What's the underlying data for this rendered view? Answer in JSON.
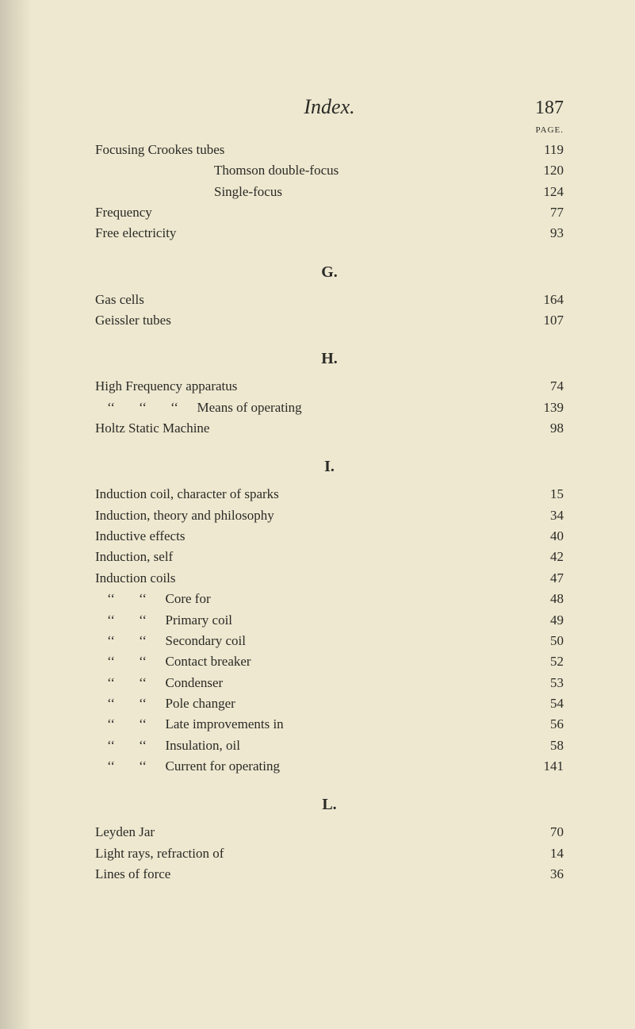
{
  "header": {
    "title": "Index.",
    "pageNumber": "187",
    "pageLabel": "PAGE."
  },
  "sections": [
    {
      "heading": null,
      "entries": [
        {
          "label": "Focusing Crookes tubes",
          "page": "119",
          "indent": 0,
          "ditto": 0
        },
        {
          "label": "Thomson double-focus",
          "page": "120",
          "indent": 1,
          "ditto": 0
        },
        {
          "label": "Single-focus",
          "page": "124",
          "indent": 1,
          "ditto": 0
        },
        {
          "label": "Frequency",
          "page": "77",
          "indent": 0,
          "ditto": 0
        },
        {
          "label": "Free electricity",
          "page": "93",
          "indent": 0,
          "ditto": 0
        }
      ]
    },
    {
      "heading": "G.",
      "entries": [
        {
          "label": "Gas cells",
          "page": "164",
          "indent": 0,
          "ditto": 0
        },
        {
          "label": "Geissler tubes",
          "page": "107",
          "indent": 0,
          "ditto": 0
        }
      ]
    },
    {
      "heading": "H.",
      "entries": [
        {
          "label": "High Frequency apparatus",
          "page": "74",
          "indent": 0,
          "ditto": 0
        },
        {
          "label": "Means of operating",
          "page": "139",
          "indent": 0,
          "ditto": 3
        },
        {
          "label": "Holtz Static Machine",
          "page": "98",
          "indent": 0,
          "ditto": 0
        }
      ]
    },
    {
      "heading": "I.",
      "entries": [
        {
          "label": "Induction coil, character of sparks",
          "page": "15",
          "indent": 0,
          "ditto": 0
        },
        {
          "label": "Induction, theory and philosophy",
          "page": "34",
          "indent": 0,
          "ditto": 0
        },
        {
          "label": "Inductive effects",
          "page": "40",
          "indent": 0,
          "ditto": 0
        },
        {
          "label": "Induction, self",
          "page": "42",
          "indent": 0,
          "ditto": 0
        },
        {
          "label": "Induction coils",
          "page": "47",
          "indent": 0,
          "ditto": 0
        },
        {
          "label": "Core for",
          "page": "48",
          "indent": 0,
          "ditto": 2
        },
        {
          "label": "Primary coil",
          "page": "49",
          "indent": 0,
          "ditto": 2
        },
        {
          "label": "Secondary coil",
          "page": "50",
          "indent": 0,
          "ditto": 2
        },
        {
          "label": "Contact breaker",
          "page": "52",
          "indent": 0,
          "ditto": 2
        },
        {
          "label": "Condenser",
          "page": "53",
          "indent": 0,
          "ditto": 2
        },
        {
          "label": "Pole changer",
          "page": "54",
          "indent": 0,
          "ditto": 2
        },
        {
          "label": "Late improvements in",
          "page": "56",
          "indent": 0,
          "ditto": 2
        },
        {
          "label": "Insulation, oil",
          "page": "58",
          "indent": 0,
          "ditto": 2
        },
        {
          "label": "Current for operating",
          "page": "141",
          "indent": 0,
          "ditto": 2
        }
      ]
    },
    {
      "heading": "L.",
      "entries": [
        {
          "label": "Leyden Jar",
          "page": "70",
          "indent": 0,
          "ditto": 0
        },
        {
          "label": "Light rays, refraction of",
          "page": "14",
          "indent": 0,
          "ditto": 0
        },
        {
          "label": "Lines of force",
          "page": "36",
          "indent": 0,
          "ditto": 0
        }
      ]
    }
  ],
  "dittoMark": "‘‘"
}
